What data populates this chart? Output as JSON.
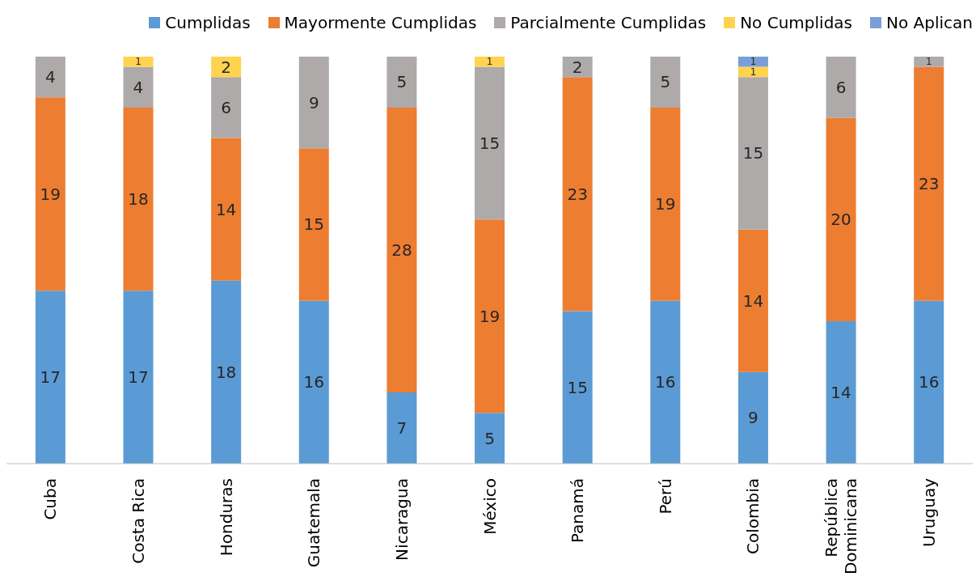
{
  "chart_data": {
    "type": "bar",
    "stacked": true,
    "data_labels": true,
    "legend": "top right",
    "tick_labels": "x",
    "grid": false,
    "ylim": [
      0,
      40
    ],
    "categories": [
      "Cuba",
      "Costa Rica",
      "Honduras",
      "Guatemala",
      "Nicaragua",
      "México",
      "Panamá",
      "Perú",
      "Colombia",
      "República Dominicana",
      "Uruguay"
    ],
    "series": [
      {
        "name": "Cumplidas",
        "color": "#5b9bd5",
        "values": [
          17,
          17,
          18,
          16,
          7,
          5,
          15,
          16,
          9,
          14,
          16
        ]
      },
      {
        "name": "Mayormente Cumplidas",
        "color": "#ed7d31",
        "values": [
          19,
          18,
          14,
          15,
          28,
          19,
          23,
          19,
          14,
          20,
          23
        ]
      },
      {
        "name": "Parcialmente Cumplidas",
        "color": "#aeaaaa",
        "values": [
          4,
          4,
          6,
          9,
          5,
          15,
          2,
          5,
          15,
          6,
          1
        ]
      },
      {
        "name": "No Cumplidas",
        "color": "#ffd34e",
        "values": [
          null,
          1,
          2,
          null,
          null,
          1,
          null,
          null,
          1,
          null,
          null
        ]
      },
      {
        "name": "No Aplican",
        "color": "#7a9fd8",
        "values": [
          null,
          null,
          null,
          null,
          null,
          null,
          null,
          null,
          1,
          null,
          null
        ]
      }
    ]
  }
}
